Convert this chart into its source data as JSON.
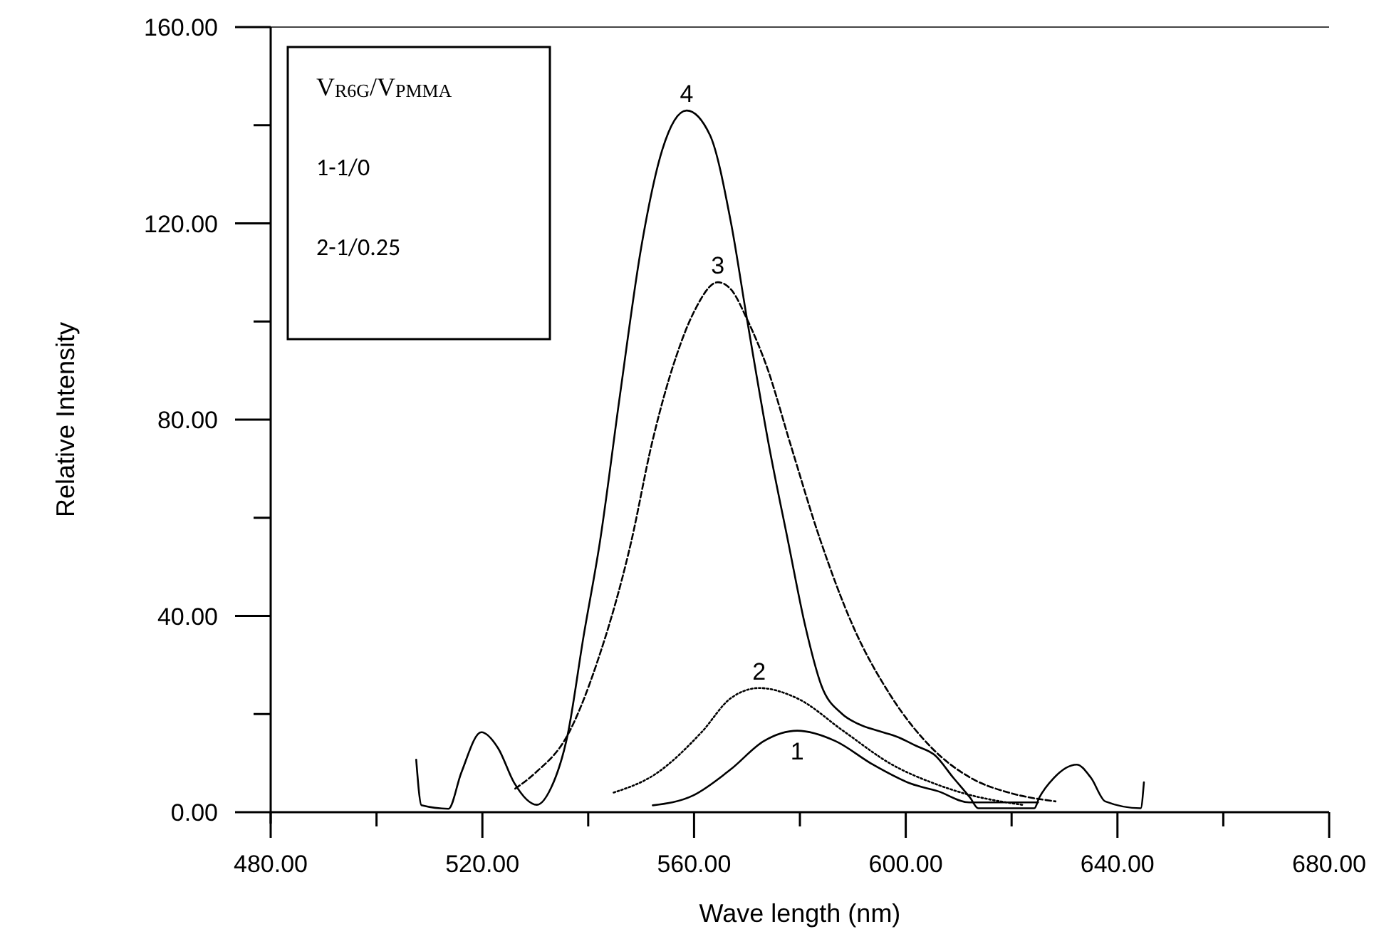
{
  "chart_data": {
    "type": "line",
    "xlabel": "Wave length (nm)",
    "ylabel": "Relative Intensity",
    "xlim": [
      480,
      680
    ],
    "ylim": [
      0,
      160
    ],
    "xticks": [
      {
        "value": 480,
        "label": "480.00"
      },
      {
        "value": 500,
        "label": null
      },
      {
        "value": 520,
        "label": "520.00"
      },
      {
        "value": 540,
        "label": null
      },
      {
        "value": 560,
        "label": "560.00"
      },
      {
        "value": 580,
        "label": null
      },
      {
        "value": 600,
        "label": "600.00"
      },
      {
        "value": 620,
        "label": null
      },
      {
        "value": 640,
        "label": "640.00"
      },
      {
        "value": 660,
        "label": null
      },
      {
        "value": 680,
        "label": "680.00"
      }
    ],
    "yticks": [
      {
        "value": 0,
        "label": "0.00"
      },
      {
        "value": 20,
        "label": null
      },
      {
        "value": 40,
        "label": "40.00"
      },
      {
        "value": 60,
        "label": null
      },
      {
        "value": 80,
        "label": "80.00"
      },
      {
        "value": 100,
        "label": null
      },
      {
        "value": 120,
        "label": "120.00"
      },
      {
        "value": 140,
        "label": null
      },
      {
        "value": 160,
        "label": "160.00"
      }
    ],
    "grid": false,
    "marker": "none",
    "series": [
      {
        "name": "4",
        "color": "#000000",
        "line_style": "solid",
        "x": [
          507.5,
          508.5,
          513.6,
          516,
          519.8,
          523,
          526,
          530.3,
          533,
          536.1,
          539.1,
          542.2,
          546,
          550,
          554,
          558.6,
          563,
          567,
          570,
          574.1,
          577.8,
          581,
          584,
          588,
          591,
          595,
          598.3,
          602,
          605.5,
          609,
          612.2,
          613.7,
          624.3,
          625.2,
          628,
          632.3,
          635,
          637.7,
          644.4,
          645
        ],
        "values": [
          10.7,
          1.4,
          0.7,
          8,
          16.3,
          13,
          6,
          1.5,
          5,
          15.7,
          35.7,
          55,
          85,
          115,
          135,
          143,
          138,
          120,
          100.5,
          75,
          55,
          38,
          26,
          20,
          18,
          16.5,
          15.4,
          13.5,
          11.6,
          7,
          2.9,
          0.8,
          0.8,
          2.9,
          7,
          9.7,
          7,
          2.2,
          0.8,
          6.1
        ]
      },
      {
        "name": "3",
        "color": "#000000",
        "line_style": "dashed",
        "x": [
          526.2,
          530,
          536.1,
          541.8,
          548.1,
          552,
          556.6,
          560,
          564.5,
          567,
          570,
          574,
          578.1,
          584,
          590,
          597,
          605,
          612.6,
          619.8,
          628.3
        ],
        "values": [
          4.8,
          8,
          15.7,
          30.9,
          55,
          75,
          92.8,
          102,
          108,
          106.5,
          100.5,
          90,
          75.4,
          55,
          38,
          24,
          13,
          6.8,
          3.9,
          2.2
        ]
      },
      {
        "name": "2",
        "color": "#000000",
        "line_style": "dotted",
        "x": [
          544.8,
          552.6,
          561.5,
          566.9,
          572.3,
          579.5,
          588.4,
          597.4,
          605.5,
          610.8,
          622
        ],
        "values": [
          4,
          7.7,
          16.4,
          23.2,
          25.3,
          23.2,
          16.4,
          9.7,
          5.8,
          3.9,
          1.5
        ]
      },
      {
        "name": "1",
        "color": "#000000",
        "line_style": "solid",
        "x": [
          552.2,
          559.8,
          566.9,
          573.2,
          579.5,
          586.7,
          593.8,
          601,
          606,
          612,
          625
        ],
        "values": [
          1.4,
          3.4,
          8.7,
          14.5,
          16.6,
          14.5,
          9.7,
          5.8,
          4.3,
          2,
          2
        ]
      }
    ],
    "annotations": [
      "V$_{R6G}$/V$_{PMMA}$",
      "1-1/0",
      "2-1/0.25"
    ]
  }
}
